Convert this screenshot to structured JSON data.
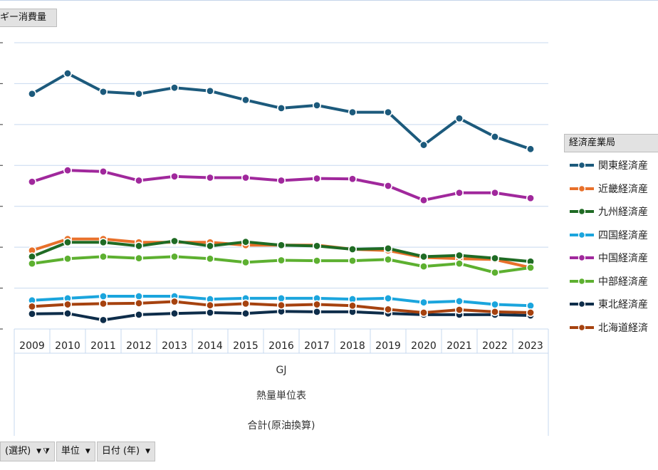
{
  "header": {
    "title": "ギー消費量"
  },
  "legend": {
    "title": "経済産業局",
    "items": [
      {
        "label": "関東経済産",
        "color": "#1c5a7c"
      },
      {
        "label": "近畿経済産",
        "color": "#e8702a"
      },
      {
        "label": "九州経済産",
        "color": "#1f6b24"
      },
      {
        "label": "四国経済産",
        "color": "#1ba5dd"
      },
      {
        "label": "中国経済産",
        "color": "#a0289c"
      },
      {
        "label": "中部経済産",
        "color": "#5db030"
      },
      {
        "label": "東北経済産",
        "color": "#0e2d4a"
      },
      {
        "label": "北海道経済",
        "color": "#a6420f"
      }
    ]
  },
  "axis_labels": {
    "unit": "GJ",
    "table": "熱量単位表",
    "measure": "合計(原油換算)"
  },
  "toolbar": {
    "filter_label": "(選択)",
    "unit_label": "単位",
    "date_label": "日付 (年)"
  },
  "chart_data": {
    "type": "line",
    "title": "",
    "xlabel": "GJ",
    "categories": [
      "2009",
      "2010",
      "2011",
      "2012",
      "2013",
      "2014",
      "2015",
      "2016",
      "2017",
      "2018",
      "2019",
      "2020",
      "2021",
      "2022",
      "2023"
    ],
    "ylim": [
      0,
      7
    ],
    "ytick_values": [
      0,
      1,
      2,
      3,
      4,
      5,
      6,
      7
    ],
    "grid": true,
    "legend_position": "right",
    "series": [
      {
        "name": "関東経済産",
        "values": [
          5.75,
          6.25,
          5.8,
          5.75,
          5.9,
          5.82,
          5.6,
          5.4,
          5.47,
          5.3,
          5.3,
          4.5,
          5.15,
          4.7,
          4.4
        ]
      },
      {
        "name": "近畿経済産",
        "values": [
          1.92,
          2.2,
          2.2,
          2.12,
          2.12,
          2.12,
          2.05,
          2.05,
          2.05,
          1.95,
          1.92,
          1.75,
          1.72,
          1.7,
          1.5
        ]
      },
      {
        "name": "九州経済産",
        "values": [
          1.77,
          2.12,
          2.12,
          2.03,
          2.15,
          2.03,
          2.13,
          2.05,
          2.03,
          1.95,
          1.97,
          1.77,
          1.8,
          1.73,
          1.65
        ]
      },
      {
        "name": "四国経済産",
        "values": [
          0.7,
          0.75,
          0.8,
          0.8,
          0.8,
          0.73,
          0.75,
          0.75,
          0.75,
          0.73,
          0.75,
          0.65,
          0.68,
          0.6,
          0.57
        ]
      },
      {
        "name": "中国経済産",
        "values": [
          3.6,
          3.88,
          3.85,
          3.63,
          3.73,
          3.7,
          3.7,
          3.63,
          3.68,
          3.67,
          3.5,
          3.15,
          3.33,
          3.33,
          3.2
        ]
      },
      {
        "name": "中部経済産",
        "values": [
          1.6,
          1.72,
          1.77,
          1.73,
          1.77,
          1.72,
          1.63,
          1.68,
          1.67,
          1.67,
          1.7,
          1.53,
          1.6,
          1.38,
          1.5
        ]
      },
      {
        "name": "東北経済産",
        "values": [
          0.37,
          0.38,
          0.22,
          0.35,
          0.38,
          0.4,
          0.38,
          0.43,
          0.42,
          0.42,
          0.38,
          0.35,
          0.35,
          0.35,
          0.33
        ]
      },
      {
        "name": "北海道経済",
        "values": [
          0.55,
          0.6,
          0.62,
          0.63,
          0.67,
          0.58,
          0.62,
          0.58,
          0.6,
          0.57,
          0.48,
          0.4,
          0.47,
          0.42,
          0.4
        ]
      }
    ]
  }
}
